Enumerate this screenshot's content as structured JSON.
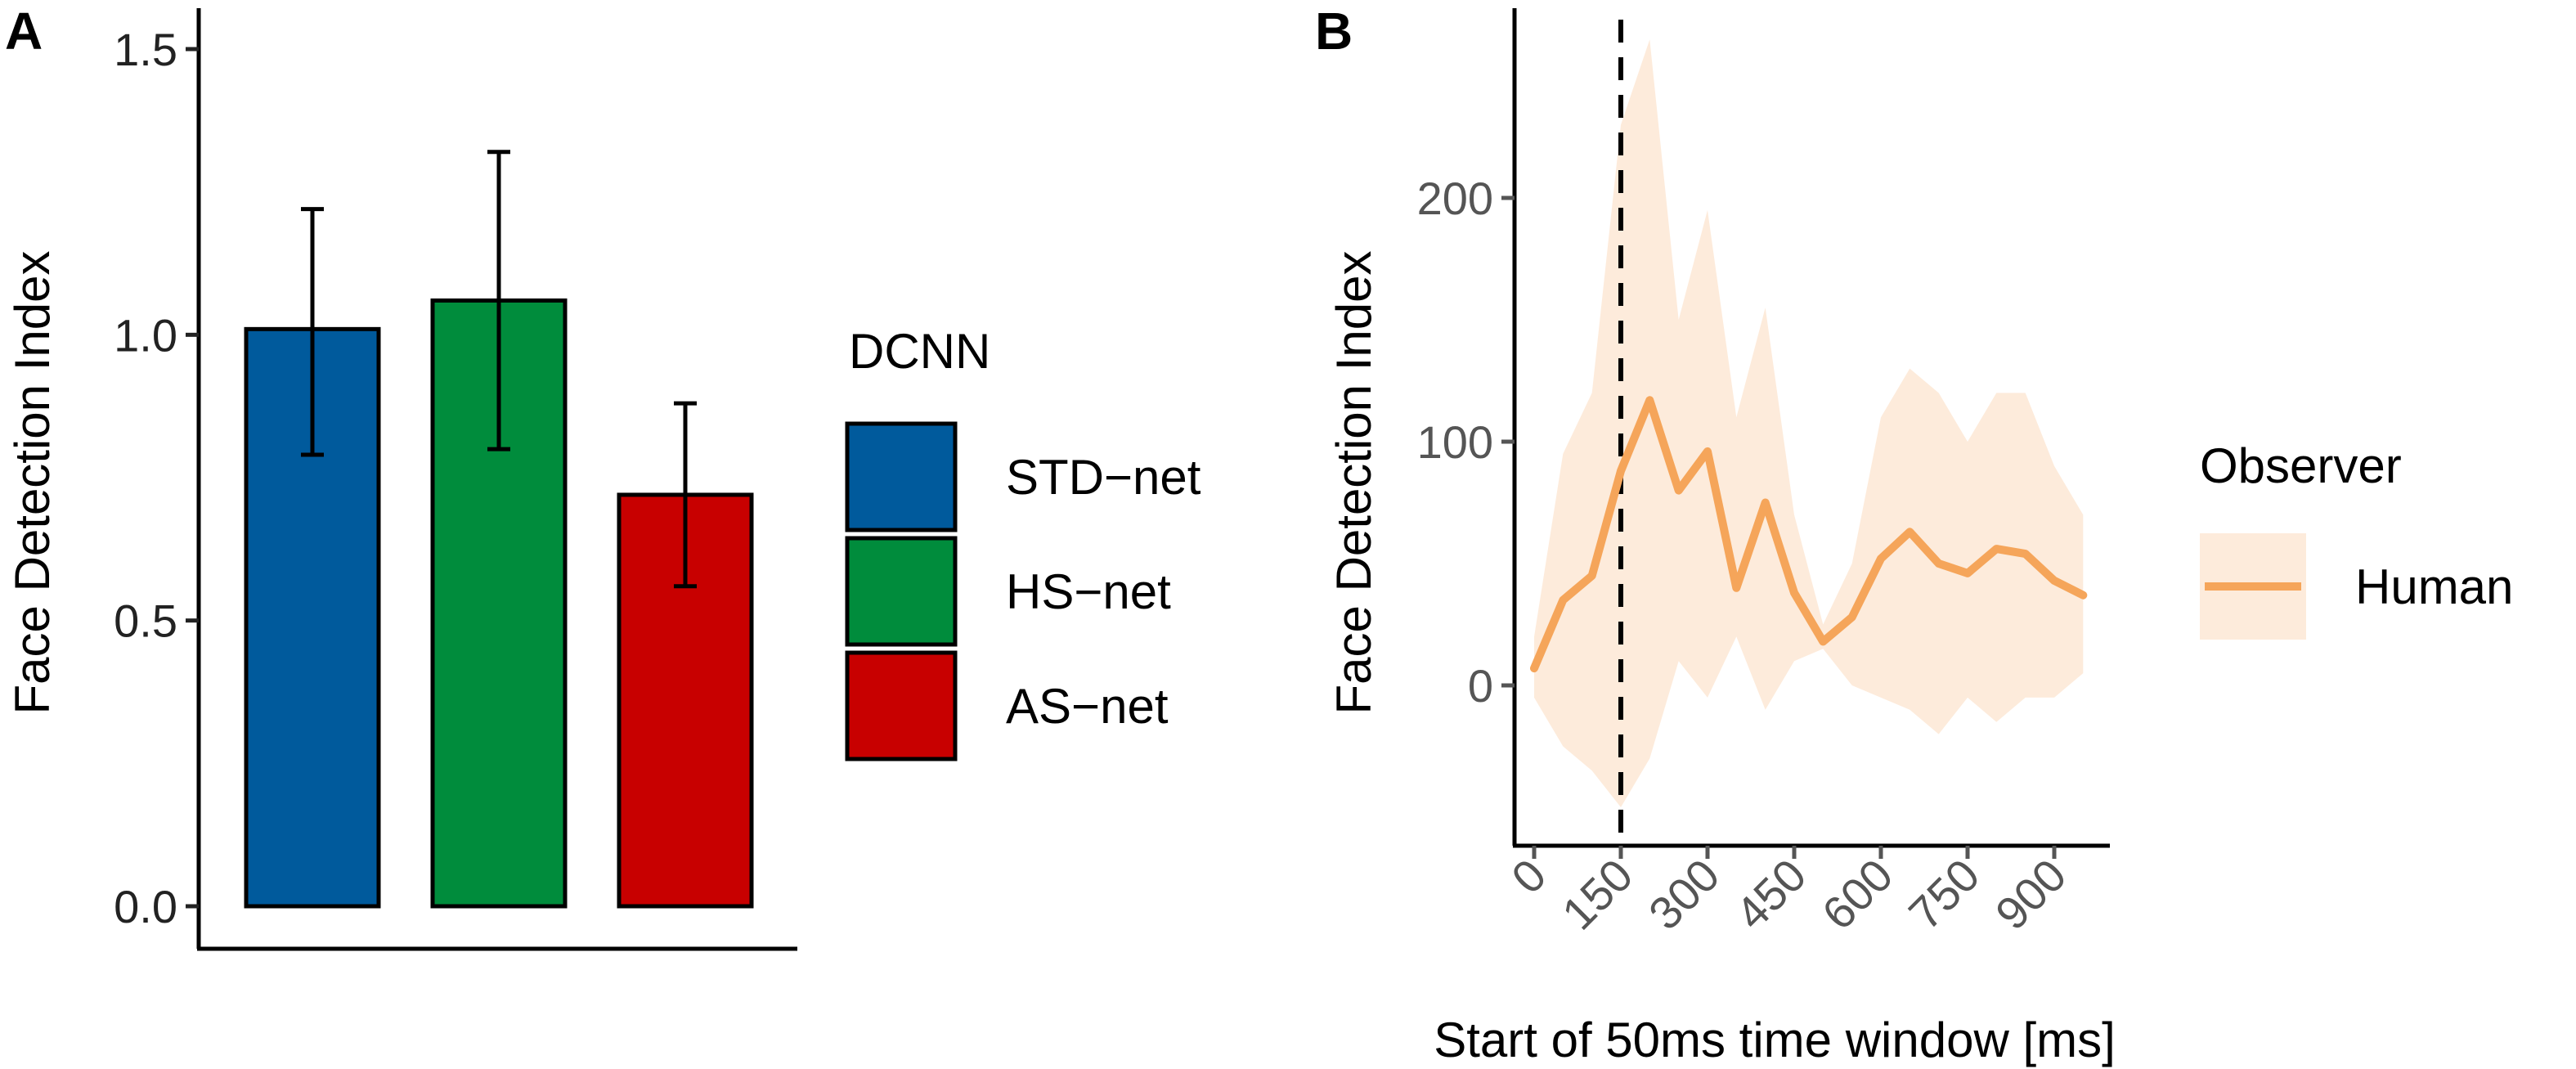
{
  "chart_data": [
    {
      "panel": "A",
      "type": "bar",
      "ylabel": "Face Detection Index",
      "xlabel": "",
      "ylim": [
        0,
        1.5
      ],
      "yticks": [
        0.0,
        0.5,
        1.0,
        1.5
      ],
      "ytick_labels": [
        "0.0",
        "0.5",
        "1.0",
        "1.5"
      ],
      "categories": [
        "STD-net",
        "HS-net",
        "AS-net"
      ],
      "values": [
        1.01,
        1.06,
        0.72
      ],
      "error_low": [
        0.79,
        0.8,
        0.56
      ],
      "error_high": [
        1.22,
        1.32,
        0.88
      ],
      "colors": [
        "#005A9C",
        "#008C3C",
        "#C80000"
      ],
      "legend": {
        "title": "DCNN",
        "entries": [
          "STD−net",
          "HS−net",
          "AS−net"
        ]
      },
      "grid": false
    },
    {
      "panel": "B",
      "type": "line",
      "ylabel": "Face Detection Index",
      "xlabel": "Start of 50ms time window [ms]",
      "xlim": [
        -20,
        970
      ],
      "ylim": [
        -60,
        280
      ],
      "xticks": [
        0,
        150,
        300,
        450,
        600,
        750,
        900
      ],
      "xtick_labels": [
        "0",
        "150",
        "300",
        "450",
        "600",
        "750",
        "900"
      ],
      "yticks": [
        0,
        100,
        200
      ],
      "ytick_labels": [
        "0",
        "100",
        "200"
      ],
      "vline_x": 150,
      "series": [
        {
          "name": "Human",
          "color": "#F5A55A",
          "x": [
            0,
            50,
            100,
            150,
            200,
            250,
            300,
            350,
            400,
            450,
            500,
            550,
            600,
            650,
            700,
            750,
            800,
            850,
            900,
            950
          ],
          "y": [
            7,
            35,
            45,
            88,
            117,
            80,
            96,
            40,
            75,
            38,
            18,
            28,
            52,
            63,
            50,
            46,
            56,
            54,
            43,
            37
          ],
          "lower": [
            -5,
            -25,
            -35,
            -50,
            -30,
            10,
            -5,
            20,
            -10,
            10,
            15,
            0,
            -5,
            -10,
            -20,
            -5,
            -15,
            -5,
            -5,
            5
          ],
          "upper": [
            20,
            95,
            120,
            230,
            265,
            150,
            195,
            110,
            155,
            70,
            25,
            50,
            110,
            130,
            120,
            100,
            120,
            120,
            90,
            70
          ]
        }
      ],
      "legend": {
        "title": "Observer",
        "entries": [
          "Human"
        ]
      },
      "grid": false
    }
  ],
  "panels": {
    "a_letter": "A",
    "b_letter": "B"
  }
}
